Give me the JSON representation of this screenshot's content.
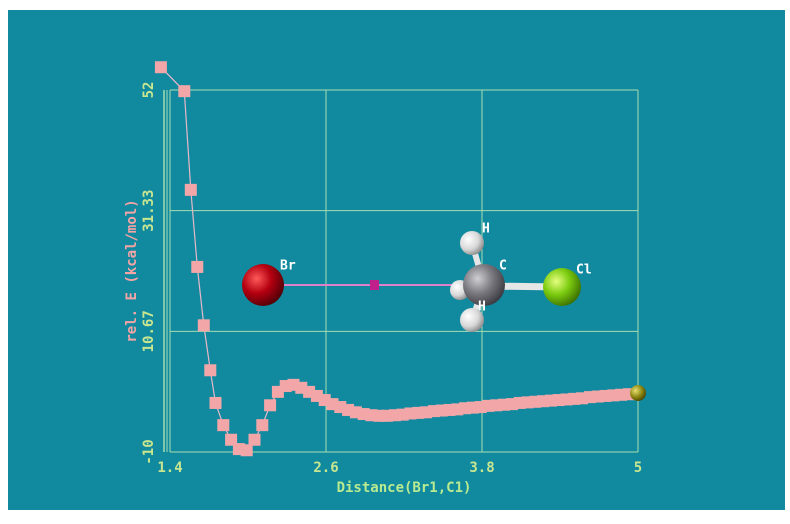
{
  "chart_data": {
    "type": "line",
    "x_label": "Distance(Br1,C1)",
    "y_label": "rel. E (kcal/mol)",
    "x": [
      1.33,
      1.51,
      1.56,
      1.61,
      1.66,
      1.71,
      1.75,
      1.81,
      1.87,
      1.93,
      1.99,
      2.05,
      2.11,
      2.17,
      2.23,
      2.29,
      2.35,
      2.41,
      2.47,
      2.53,
      2.59,
      2.65,
      2.71,
      2.77,
      2.83,
      2.89,
      2.95,
      3.01,
      3.07,
      3.13,
      3.19,
      3.25,
      3.31,
      3.37,
      3.43,
      3.49,
      3.55,
      3.61,
      3.67,
      3.73,
      3.79,
      3.85,
      3.91,
      3.97,
      4.03,
      4.09,
      4.15,
      4.21,
      4.27,
      4.33,
      4.39,
      4.45,
      4.51,
      4.57,
      4.63,
      4.69,
      4.75,
      4.81,
      4.87,
      4.93,
      5.0
    ],
    "values": [
      55.9,
      51.8,
      34.9,
      21.7,
      11.7,
      4.0,
      -1.6,
      -5.4,
      -7.9,
      -9.5,
      -9.7,
      -7.9,
      -5.4,
      -2.0,
      0.3,
      1.3,
      1.5,
      1.0,
      0.3,
      -0.4,
      -1.1,
      -1.8,
      -2.3,
      -2.8,
      -3.2,
      -3.5,
      -3.7,
      -3.8,
      -3.8,
      -3.7,
      -3.6,
      -3.4,
      -3.3,
      -3.2,
      -3.0,
      -2.9,
      -2.8,
      -2.7,
      -2.5,
      -2.4,
      -2.3,
      -2.1,
      -2.0,
      -1.9,
      -1.8,
      -1.6,
      -1.5,
      -1.4,
      -1.3,
      -1.2,
      -1.1,
      -1.0,
      -0.9,
      -0.8,
      -0.6,
      -0.5,
      -0.4,
      -0.3,
      -0.2,
      -0.1,
      0.1
    ],
    "color": "#f2a6a8",
    "xlim": [
      1.4,
      5
    ],
    "ylim": [
      -10,
      52
    ],
    "xticks": [
      1.4,
      2.6,
      3.8,
      5
    ],
    "yticks": [
      -10,
      10.67,
      31.33,
      52
    ],
    "grid": true
  },
  "molecule": {
    "atoms": [
      {
        "label": "Br"
      },
      {
        "label": "C"
      },
      {
        "label": "Cl"
      },
      {
        "label": "H"
      },
      {
        "label": "H"
      }
    ]
  }
}
